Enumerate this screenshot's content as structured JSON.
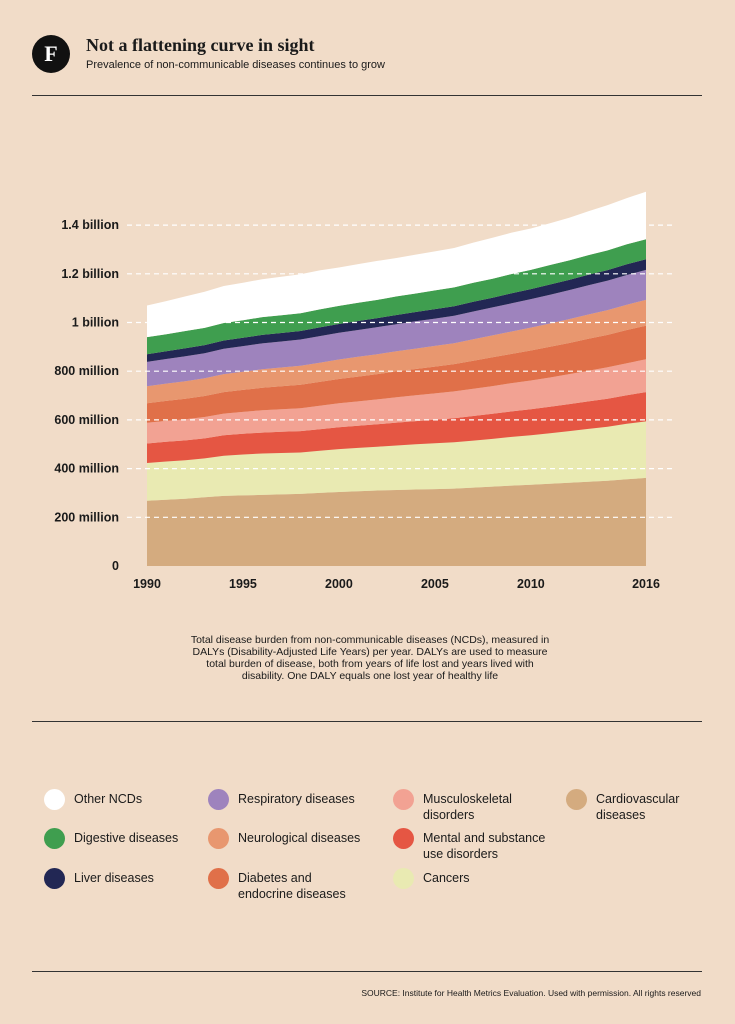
{
  "header": {
    "logo_letter": "F",
    "title": "Not a flattening curve in sight",
    "subtitle": "Prevalence of non-communicable diseases continues to grow"
  },
  "note": "Total disease burden from non-communicable diseases (NCDs), measured in DALYs (Disability-Adjusted Life Years) per year. DALYs are used to measure total burden of disease, both from years of life lost and years lived with disability. One DALY equals one lost year of healthy life",
  "source": "SOURCE:  Institute for Health Metrics Evaluation. Used with permission. All rights reserved",
  "chart_data": {
    "type": "area",
    "stacked": true,
    "x": [
      1990,
      1991,
      1992,
      1993,
      1994,
      1995,
      1996,
      1997,
      1998,
      1999,
      2000,
      2001,
      2002,
      2003,
      2004,
      2005,
      2006,
      2007,
      2008,
      2009,
      2010,
      2011,
      2012,
      2013,
      2014,
      2015,
      2016
    ],
    "x_ticks": [
      1990,
      1995,
      2000,
      2005,
      2010,
      2016
    ],
    "y_ticks": [
      {
        "value": 0,
        "label": "0"
      },
      {
        "value": 200,
        "label": "200 million"
      },
      {
        "value": 400,
        "label": "400 million"
      },
      {
        "value": 600,
        "label": "600 million"
      },
      {
        "value": 800,
        "label": "800 million"
      },
      {
        "value": 1000,
        "label": "1 billion"
      },
      {
        "value": 1200,
        "label": "1.2 billion"
      },
      {
        "value": 1400,
        "label": "1.4 billion"
      }
    ],
    "ylim": [
      0,
      1450
    ],
    "grid": true,
    "series": [
      {
        "name": "Cardiovascular diseases",
        "color": "#d4ab7f",
        "values": [
          268,
          272,
          276,
          282,
          288,
          290,
          292,
          294,
          296,
          300,
          304,
          307,
          310,
          312,
          314,
          316,
          318,
          322,
          326,
          330,
          334,
          338,
          342,
          346,
          350,
          356,
          362
        ]
      },
      {
        "name": "Cancers",
        "color": "#e9eab2",
        "values": [
          155,
          157,
          158,
          160,
          165,
          168,
          170,
          170,
          170,
          173,
          176,
          178,
          180,
          183,
          186,
          188,
          190,
          193,
          196,
          200,
          203,
          207,
          212,
          217,
          222,
          228,
          232
        ]
      },
      {
        "name": "Mental and substance use disorders",
        "color": "#e55643",
        "values": [
          80,
          81,
          82,
          82,
          84,
          85,
          86,
          87,
          88,
          89,
          90,
          91,
          92,
          94,
          95,
          97,
          99,
          101,
          103,
          105,
          107,
          109,
          111,
          113,
          115,
          117,
          120
        ]
      },
      {
        "name": "Musculoskeletal disorders",
        "color": "#f2a293",
        "values": [
          85,
          86,
          87,
          88,
          89,
          90,
          92,
          93,
          94,
          96,
          98,
          100,
          102,
          104,
          106,
          108,
          110,
          112,
          114,
          116,
          118,
          120,
          123,
          126,
          129,
          132,
          135
        ]
      },
      {
        "name": "Diabetes and endocrine diseases",
        "color": "#e07049",
        "values": [
          80,
          82,
          84,
          86,
          88,
          90,
          92,
          94,
          96,
          98,
          100,
          102,
          104,
          106,
          108,
          110,
          112,
          115,
          118,
          120,
          123,
          126,
          128,
          131,
          133,
          136,
          138
        ]
      },
      {
        "name": "Neurological diseases",
        "color": "#e8976f",
        "values": [
          70,
          71,
          72,
          73,
          74,
          75,
          76,
          77,
          78,
          79,
          80,
          81,
          82,
          83,
          84,
          85,
          86,
          88,
          90,
          92,
          94,
          96,
          98,
          100,
          102,
          104,
          106
        ]
      },
      {
        "name": "Respiratory diseases",
        "color": "#9e83bd",
        "values": [
          100,
          101,
          102,
          103,
          104,
          105,
          106,
          107,
          108,
          109,
          110,
          110,
          111,
          111,
          112,
          112,
          113,
          114,
          115,
          116,
          117,
          118,
          119,
          120,
          121,
          122,
          123
        ]
      },
      {
        "name": "Liver diseases",
        "color": "#222754",
        "values": [
          32,
          32,
          33,
          33,
          34,
          34,
          35,
          35,
          35,
          36,
          36,
          37,
          37,
          38,
          38,
          39,
          39,
          40,
          40,
          41,
          41,
          42,
          42,
          43,
          43,
          44,
          44
        ]
      },
      {
        "name": "Digestive diseases",
        "color": "#3f9e4f",
        "values": [
          70,
          70,
          71,
          71,
          72,
          72,
          73,
          73,
          73,
          74,
          74,
          75,
          75,
          76,
          76,
          77,
          77,
          78,
          78,
          79,
          79,
          80,
          80,
          81,
          81,
          82,
          82
        ]
      },
      {
        "name": "Other NCDs",
        "color": "#ffffff",
        "values": [
          130,
          136,
          142,
          148,
          152,
          154,
          156,
          158,
          160,
          160,
          158,
          159,
          160,
          158,
          160,
          160,
          162,
          165,
          168,
          170,
          170,
          172,
          175,
          180,
          186,
          190,
          195
        ]
      }
    ]
  },
  "legend": {
    "items": [
      {
        "label": "Other NCDs",
        "color": "#ffffff"
      },
      {
        "label": "Digestive diseases",
        "color": "#3f9e4f"
      },
      {
        "label": "Liver diseases",
        "color": "#222754"
      },
      {
        "label": "Respiratory diseases",
        "color": "#9e83bd"
      },
      {
        "label": "Neurological diseases",
        "color": "#e8976f"
      },
      {
        "label": "Diabetes and endocrine diseases",
        "color": "#e07049"
      },
      {
        "label": "Musculoskeletal disorders",
        "color": "#f2a293"
      },
      {
        "label": "Mental and substance use disorders",
        "color": "#e55643"
      },
      {
        "label": "Cancers",
        "color": "#e9eab2"
      },
      {
        "label": "Cardiovascular diseases",
        "color": "#d4ab7f"
      }
    ]
  }
}
